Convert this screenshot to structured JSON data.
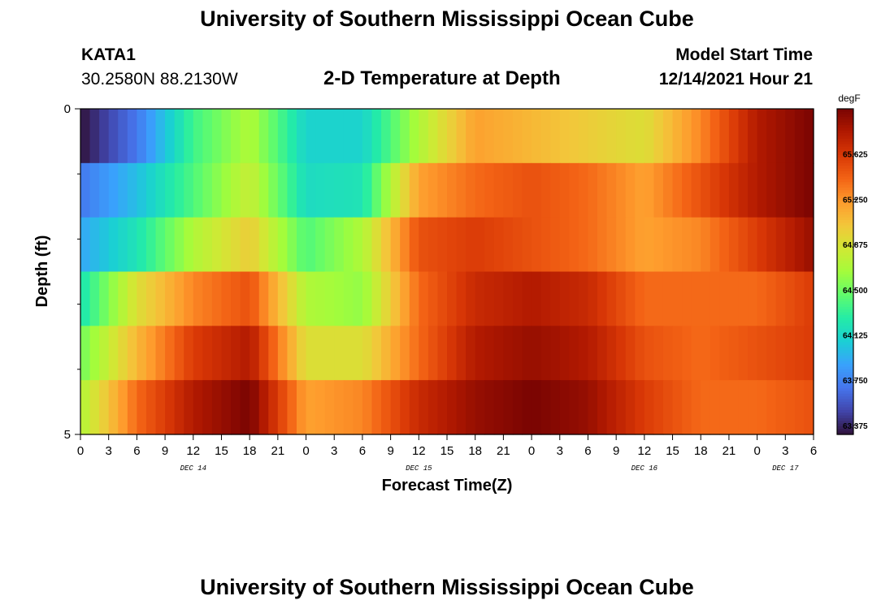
{
  "header": {
    "title": "University of Southern Mississippi Ocean Cube",
    "station_id": "KATA1",
    "coordinates": "30.2580N  88.2130W",
    "subtitle": "2-D Temperature at Depth",
    "model_start_label": "Model Start Time",
    "model_start_value": "12/14/2021 Hour 21"
  },
  "footer": {
    "title": "University of Southern Mississippi Ocean Cube"
  },
  "chart_data": {
    "type": "heatmap",
    "title": "2-D Temperature at Depth",
    "xlabel": "Forecast Time(Z)",
    "ylabel": "Depth (ft)",
    "x_ticks": [
      "0",
      "3",
      "6",
      "9",
      "12",
      "15",
      "18",
      "21",
      "0",
      "3",
      "6",
      "9",
      "12",
      "15",
      "18",
      "21",
      "0",
      "3",
      "6",
      "9",
      "12",
      "15",
      "18",
      "21",
      "0",
      "3",
      "6"
    ],
    "x_range_hours": [
      0,
      78
    ],
    "date_labels": [
      {
        "label": "DEC 14",
        "hour": 12
      },
      {
        "label": "DEC 15",
        "hour": 36
      },
      {
        "label": "DEC 16",
        "hour": 60
      },
      {
        "label": "DEC 17",
        "hour": 75
      }
    ],
    "y_ticks": [
      "0",
      "5"
    ],
    "ylim": [
      5,
      0
    ],
    "depth_rows": 6,
    "colorbar": {
      "unit": "degF",
      "ticks": [
        "65.625",
        "65.250",
        "64.875",
        "64.500",
        "64.125",
        "63.750",
        "63.375"
      ],
      "range": [
        63.3,
        66.0
      ],
      "colors": [
        "#30123b",
        "#4145ab",
        "#4675ed",
        "#39a2fc",
        "#1bcfd4",
        "#24eca6",
        "#61fc6c",
        "#a4fc3b",
        "#d1e834",
        "#f3c63a",
        "#fe9b2d",
        "#f36315",
        "#d93806",
        "#b11901",
        "#7a0402"
      ]
    },
    "values_note_hours": [
      0,
      6,
      12,
      18,
      24,
      30,
      36,
      42,
      48,
      54,
      60,
      66,
      72,
      78
    ],
    "series": [
      {
        "depth_row": 0,
        "values": [
          63.3,
          63.7,
          64.35,
          64.7,
          64.1,
          64.1,
          64.7,
          65.2,
          65.1,
          65.0,
          64.9,
          65.3,
          65.8,
          66.0
        ]
      },
      {
        "depth_row": 1,
        "values": [
          63.7,
          64.0,
          64.4,
          64.8,
          64.15,
          64.2,
          65.2,
          65.4,
          65.5,
          65.4,
          65.2,
          65.5,
          65.8,
          66.0
        ]
      },
      {
        "depth_row": 2,
        "values": [
          63.9,
          64.2,
          64.7,
          65.0,
          64.4,
          64.7,
          65.5,
          65.6,
          65.5,
          65.4,
          65.2,
          65.3,
          65.6,
          65.9
        ]
      },
      {
        "depth_row": 3,
        "values": [
          64.2,
          64.9,
          65.3,
          65.5,
          64.7,
          64.6,
          65.4,
          65.7,
          65.8,
          65.7,
          65.4,
          65.4,
          65.4,
          65.6
        ]
      },
      {
        "depth_row": 4,
        "values": [
          64.5,
          65.1,
          65.6,
          65.8,
          64.9,
          64.9,
          65.4,
          65.8,
          65.9,
          65.8,
          65.5,
          65.4,
          65.5,
          65.6
        ]
      },
      {
        "depth_row": 5,
        "values": [
          64.7,
          65.4,
          65.8,
          66.0,
          65.2,
          65.3,
          65.7,
          65.9,
          66.0,
          65.9,
          65.6,
          65.4,
          65.4,
          65.5
        ]
      }
    ]
  }
}
